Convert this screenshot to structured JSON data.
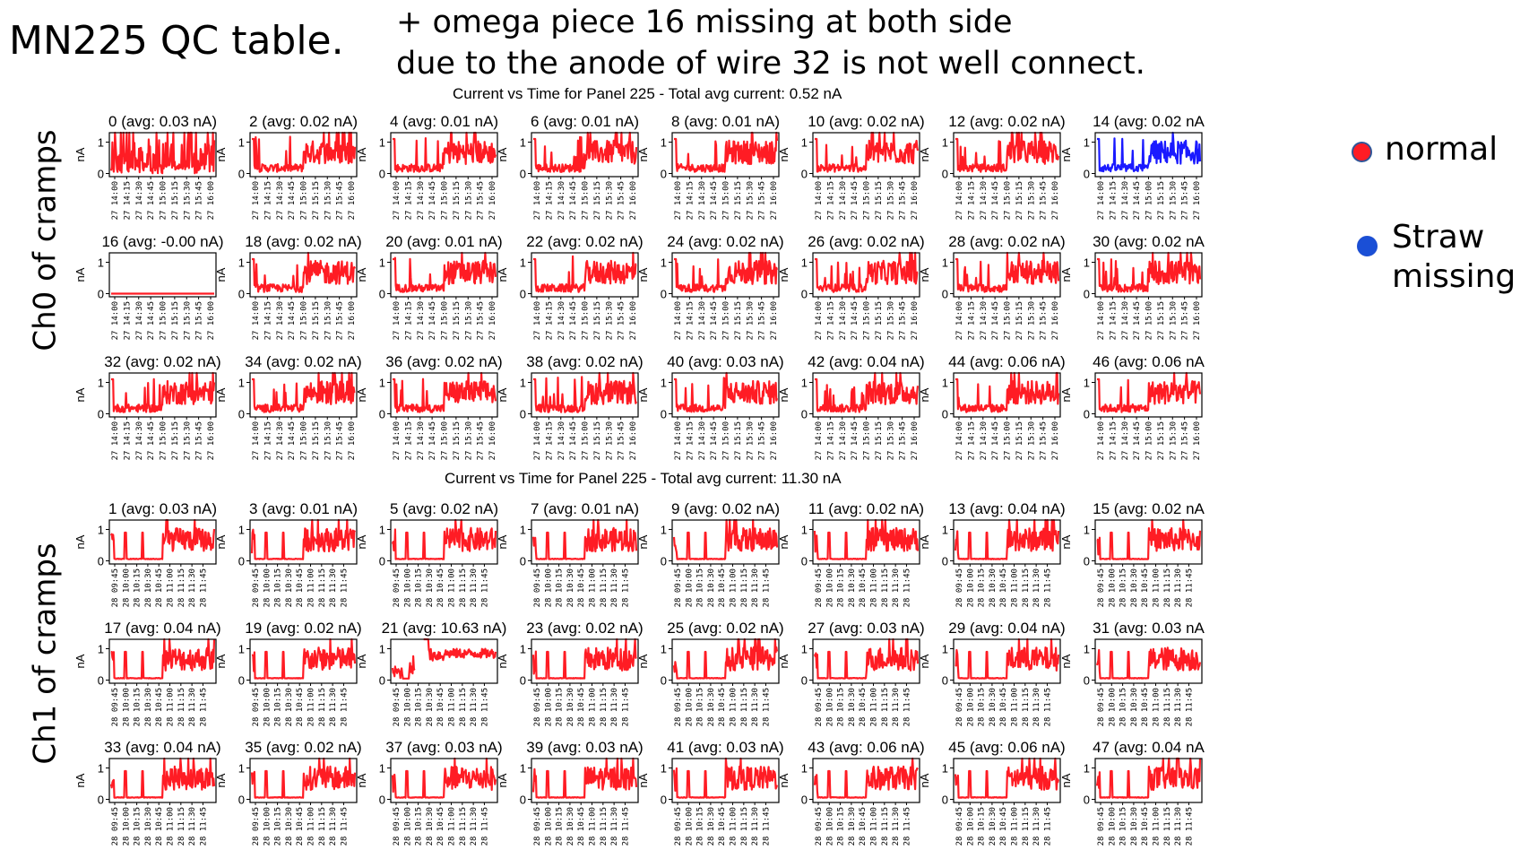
{
  "slide": {
    "title": "MN225 QC table.",
    "note": [
      "+ omega piece 16 missing at both side",
      "due to the anode of wire 32 is not well connect."
    ]
  },
  "legend": [
    {
      "label": "normal",
      "color": "#ff1c24"
    },
    {
      "label": "Straw\nmissing",
      "color": "#1a4fd6"
    }
  ],
  "colors": {
    "normal": "#ff1c24",
    "missing": "#1a1aff",
    "axis": "#000000"
  },
  "chart_data": [
    {
      "type": "line",
      "title": "Current vs Time for Panel 225 - Total avg current: 0.52 nA",
      "side_label": "Ch0 of cramps",
      "ylabel": "nA",
      "yticks": [
        "0",
        "1"
      ],
      "ylim": [
        -0.1,
        1.3
      ],
      "xticks": [
        "27 14:00",
        "27 14:15",
        "27 14:30",
        "27 14:45",
        "27 15:00",
        "27 15:15",
        "27 15:30",
        "27 15:45",
        "27 16:00"
      ],
      "xtick_fracs": [
        0.0,
        0.125,
        0.25,
        0.375,
        0.5,
        0.625,
        0.75,
        0.875,
        1.0
      ],
      "panels": [
        {
          "title": "0 (avg: 0.03 nA)",
          "pattern": "full",
          "status": "normal"
        },
        {
          "title": "2 (avg: 0.02 nA)",
          "pattern": "late",
          "status": "normal"
        },
        {
          "title": "4 (avg: 0.01 nA)",
          "pattern": "late",
          "status": "normal"
        },
        {
          "title": "6 (avg: 0.01 nA)",
          "pattern": "late",
          "status": "normal"
        },
        {
          "title": "8 (avg: 0.01 nA)",
          "pattern": "late",
          "status": "normal"
        },
        {
          "title": "10 (avg: 0.02 nA)",
          "pattern": "late",
          "status": "normal"
        },
        {
          "title": "12 (avg: 0.02 nA)",
          "pattern": "late",
          "status": "normal"
        },
        {
          "title": "14 (avg: 0.02 nA",
          "pattern": "late",
          "status": "missing"
        },
        {
          "title": "16 (avg: -0.00 nA)",
          "pattern": "flat",
          "status": "normal"
        },
        {
          "title": "18 (avg: 0.02 nA)",
          "pattern": "late",
          "status": "normal"
        },
        {
          "title": "20 (avg: 0.01 nA)",
          "pattern": "late",
          "status": "normal"
        },
        {
          "title": "22 (avg: 0.02 nA)",
          "pattern": "late",
          "status": "normal"
        },
        {
          "title": "24 (avg: 0.02 nA)",
          "pattern": "late",
          "status": "normal"
        },
        {
          "title": "26 (avg: 0.02 nA)",
          "pattern": "late",
          "status": "normal"
        },
        {
          "title": "28 (avg: 0.02 nA)",
          "pattern": "late",
          "status": "normal"
        },
        {
          "title": "30 (avg: 0.02 nA",
          "pattern": "late",
          "status": "normal"
        },
        {
          "title": "32 (avg: 0.02 nA)",
          "pattern": "late",
          "status": "normal"
        },
        {
          "title": "34 (avg: 0.02 nA)",
          "pattern": "late",
          "status": "normal"
        },
        {
          "title": "36 (avg: 0.02 nA)",
          "pattern": "late",
          "status": "normal"
        },
        {
          "title": "38 (avg: 0.02 nA)",
          "pattern": "late",
          "status": "normal"
        },
        {
          "title": "40 (avg: 0.03 nA)",
          "pattern": "late",
          "status": "normal"
        },
        {
          "title": "42 (avg: 0.04 nA)",
          "pattern": "late",
          "status": "normal"
        },
        {
          "title": "44 (avg: 0.06 nA)",
          "pattern": "late",
          "status": "normal"
        },
        {
          "title": "46 (avg: 0.06 nA",
          "pattern": "late",
          "status": "normal"
        }
      ]
    },
    {
      "type": "line",
      "title": "Current vs Time for Panel 225 - Total avg current: 11.30 nA",
      "side_label": "Ch1 of cramps",
      "ylabel": "nA",
      "yticks": [
        "0",
        "1"
      ],
      "ylim": [
        -0.1,
        1.3
      ],
      "xticks": [
        "28 09:45",
        "28 10:00",
        "28 10:15",
        "28 10:30",
        "28 10:45",
        "28 11:00",
        "28 11:15",
        "28 11:30",
        "28 11:45"
      ],
      "xtick_fracs": [
        0.0,
        0.115,
        0.23,
        0.345,
        0.46,
        0.575,
        0.69,
        0.805,
        0.92
      ],
      "panels": [
        {
          "title": "1 (avg: 0.03 nA)",
          "pattern": "spiky",
          "status": "normal"
        },
        {
          "title": "3 (avg: 0.01 nA)",
          "pattern": "spiky",
          "status": "normal"
        },
        {
          "title": "5 (avg: 0.02 nA)",
          "pattern": "spiky",
          "status": "normal"
        },
        {
          "title": "7 (avg: 0.01 nA)",
          "pattern": "spiky",
          "status": "normal"
        },
        {
          "title": "9 (avg: 0.02 nA)",
          "pattern": "spiky",
          "status": "normal"
        },
        {
          "title": "11 (avg: 0.02 nA)",
          "pattern": "spiky",
          "status": "normal"
        },
        {
          "title": "13 (avg: 0.04 nA)",
          "pattern": "spiky",
          "status": "normal"
        },
        {
          "title": "15 (avg: 0.02 nA",
          "pattern": "spiky",
          "status": "normal"
        },
        {
          "title": "17 (avg: 0.04 nA)",
          "pattern": "spiky",
          "status": "normal"
        },
        {
          "title": "19 (avg: 0.02 nA)",
          "pattern": "spiky",
          "status": "normal"
        },
        {
          "title": "21 (avg: 10.63 nA)",
          "pattern": "high",
          "status": "normal"
        },
        {
          "title": "23 (avg: 0.02 nA)",
          "pattern": "spiky",
          "status": "normal"
        },
        {
          "title": "25 (avg: 0.02 nA)",
          "pattern": "spiky",
          "status": "normal"
        },
        {
          "title": "27 (avg: 0.03 nA)",
          "pattern": "spiky",
          "status": "normal"
        },
        {
          "title": "29 (avg: 0.04 nA)",
          "pattern": "spiky",
          "status": "normal"
        },
        {
          "title": "31 (avg: 0.03 nA",
          "pattern": "spiky",
          "status": "normal"
        },
        {
          "title": "33 (avg: 0.04 nA)",
          "pattern": "spiky",
          "status": "normal"
        },
        {
          "title": "35 (avg: 0.02 nA)",
          "pattern": "spiky",
          "status": "normal"
        },
        {
          "title": "37 (avg: 0.03 nA)",
          "pattern": "spiky",
          "status": "normal"
        },
        {
          "title": "39 (avg: 0.03 nA)",
          "pattern": "spiky",
          "status": "normal"
        },
        {
          "title": "41 (avg: 0.03 nA)",
          "pattern": "spiky",
          "status": "normal"
        },
        {
          "title": "43 (avg: 0.06 nA)",
          "pattern": "spiky",
          "status": "normal"
        },
        {
          "title": "45 (avg: 0.06 nA)",
          "pattern": "spiky",
          "status": "normal"
        },
        {
          "title": "47 (avg: 0.04 nA",
          "pattern": "spiky",
          "status": "normal"
        }
      ]
    }
  ]
}
